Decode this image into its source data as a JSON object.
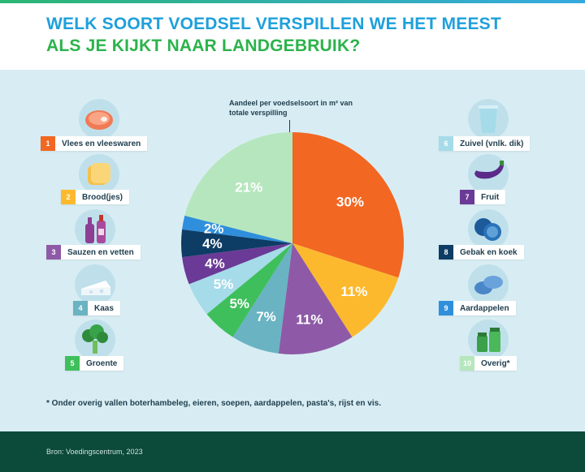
{
  "header": {
    "title_line1": "WELK SOORT VOEDSEL VERSPILLEN WE HET MEEST",
    "title_line2": "ALS JE KIJKT NAAR LANDGEBRUIK?"
  },
  "pie_caption": "Aandeel per voedselsoort in m² van totale verspilling",
  "footnote": "* Onder overig vallen boterhambeleg, eieren, soepen, aardappelen, pasta's, rijst en vis.",
  "footer": {
    "source": "Bron: Voedingscentrum, 2023"
  },
  "legend_left": [
    {
      "num": "1",
      "label": "Vlees en vleeswaren",
      "color": "#f26722",
      "icon": "meat-icon"
    },
    {
      "num": "2",
      "label": "Brood(jes)",
      "color": "#fdb92e",
      "icon": "bread-icon"
    },
    {
      "num": "3",
      "label": "Sauzen en vetten",
      "color": "#8e5aa7",
      "icon": "bottles-icon"
    },
    {
      "num": "4",
      "label": "Kaas",
      "color": "#69b3c3",
      "icon": "cheese-icon"
    },
    {
      "num": "5",
      "label": "Groente",
      "color": "#3ebf5b",
      "icon": "broccoli-icon"
    }
  ],
  "legend_right": [
    {
      "num": "6",
      "label": "Zuivel (vnlk. dik)",
      "color": "#a6dbe9",
      "icon": "yoghurt-icon"
    },
    {
      "num": "7",
      "label": "Fruit",
      "color": "#6b3a96",
      "icon": "eggplant-icon"
    },
    {
      "num": "8",
      "label": "Gebak en koek",
      "color": "#0d3c64",
      "icon": "cookies-icon"
    },
    {
      "num": "9",
      "label": "Aardappelen",
      "color": "#2f8fdc",
      "icon": "potatoes-icon"
    },
    {
      "num": "10",
      "label": "Overig*",
      "color": "#b6e6bd",
      "icon": "jars-icon"
    }
  ],
  "chart_data": {
    "type": "pie",
    "title": "WELK SOORT VOEDSEL VERSPILLEN WE HET MEEST ALS JE KIJKT NAAR LANDGEBRUIK?",
    "categories": [
      "Vlees en vleeswaren",
      "Brood(jes)",
      "Sauzen en vetten",
      "Kaas",
      "Groente",
      "Zuivel (vnlk. dik)",
      "Fruit",
      "Gebak en koek",
      "Aardappelen",
      "Overig*"
    ],
    "slices": [
      {
        "label": "30%",
        "value": 30,
        "color": "#f26722"
      },
      {
        "label": "11%",
        "value": 11,
        "color": "#fdb92e"
      },
      {
        "label": "11%",
        "value": 11,
        "color": "#8e5aa7"
      },
      {
        "label": "7%",
        "value": 7,
        "color": "#69b3c3"
      },
      {
        "label": "5%",
        "value": 5,
        "color": "#3ebf5b"
      },
      {
        "label": "5%",
        "value": 5,
        "color": "#a6dbe9"
      },
      {
        "label": "4%",
        "value": 4,
        "color": "#6b3a96"
      },
      {
        "label": "4%",
        "value": 4,
        "color": "#0d3c64"
      },
      {
        "label": "2%",
        "value": 2,
        "color": "#2f8fdc"
      },
      {
        "label": "21%",
        "value": 21,
        "color": "#b6e6bd"
      }
    ]
  }
}
